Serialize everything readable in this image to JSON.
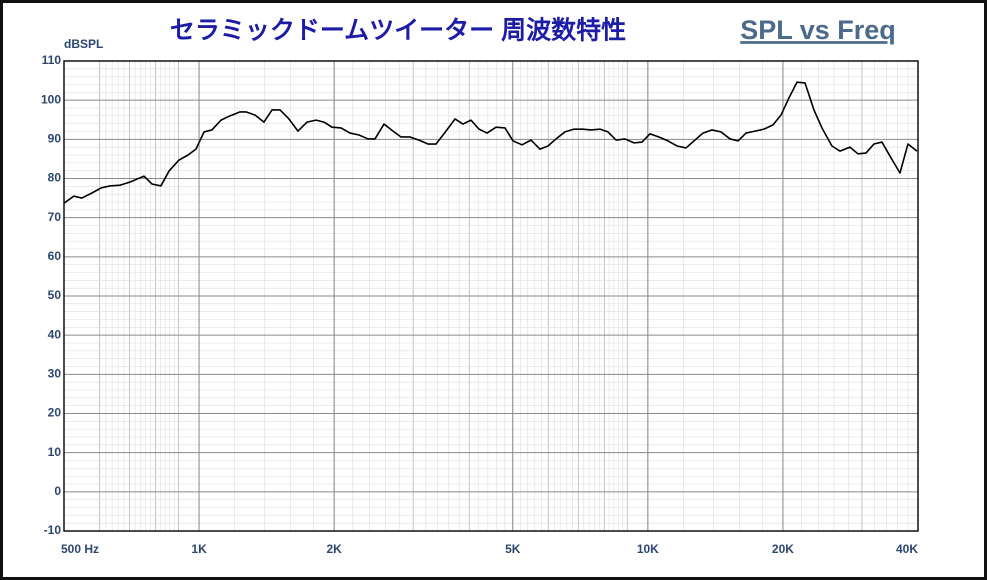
{
  "chart_data": {
    "type": "line",
    "title": "セラミックドームツイーター 周波数特性",
    "subtitle": "SPL vs Freq",
    "y_label": "dBSPL",
    "log_x": true,
    "grid": true,
    "minor_grid": true,
    "xlim": [
      500,
      40000
    ],
    "xticks": [
      {
        "value": 500,
        "label": "500 Hz"
      },
      {
        "value": 1000,
        "label": "1K"
      },
      {
        "value": 2000,
        "label": "2K"
      },
      {
        "value": 5000,
        "label": "5K"
      },
      {
        "value": 10000,
        "label": "10K"
      },
      {
        "value": 20000,
        "label": "20K"
      },
      {
        "value": 40000,
        "label": "40K"
      }
    ],
    "ylim": [
      -10,
      110
    ],
    "yticks": [
      -10,
      0,
      10,
      20,
      30,
      40,
      50,
      60,
      70,
      80,
      90,
      100,
      110
    ],
    "series": [
      {
        "color": "#000000",
        "x": [
          500,
          526,
          548,
          577,
          605,
          633,
          667,
          702,
          754,
          785,
          822,
          857,
          902,
          945,
          984,
          1026,
          1068,
          1119,
          1172,
          1234,
          1272,
          1332,
          1395,
          1454,
          1515,
          1586,
          1661,
          1740,
          1822,
          1898,
          1978,
          2071,
          2169,
          2272,
          2379,
          2466,
          2583,
          2705,
          2818,
          2951,
          3091,
          3237,
          3373,
          3550,
          3718,
          3873,
          4036,
          4205,
          4382,
          4589,
          4805,
          5007,
          5243,
          5491,
          5750,
          5991,
          6242,
          6537,
          6846,
          7169,
          7470,
          7822,
          8151,
          8493,
          8895,
          9315,
          9705,
          10112,
          10590,
          11089,
          11614,
          12162,
          12674,
          13272,
          13900,
          14557,
          15245,
          15887,
          16552,
          17335,
          18152,
          19010,
          19807,
          20637,
          21500,
          22400,
          23455,
          24440,
          25720,
          26800,
          28210,
          29395,
          30625,
          31910,
          33245,
          34815,
          36465,
          37990,
          39790
        ],
        "values": [
          73.7,
          75.5,
          75,
          76.3,
          77.6,
          78.1,
          78.3,
          79.1,
          80.6,
          78.6,
          78.1,
          81.9,
          84.7,
          86,
          87.5,
          91.9,
          92.4,
          94.9,
          96,
          97,
          97,
          96.2,
          94.4,
          97.5,
          97.5,
          95.2,
          92.1,
          94.4,
          94.9,
          94.4,
          93.1,
          92.9,
          91.6,
          91.1,
          90.1,
          90.1,
          93.9,
          92.1,
          90.6,
          90.6,
          89.8,
          88.8,
          88.8,
          92.1,
          95.2,
          93.9,
          94.9,
          92.6,
          91.6,
          93.1,
          92.9,
          89.6,
          88.6,
          89.8,
          87.5,
          88.3,
          90.1,
          91.9,
          92.6,
          92.6,
          92.4,
          92.6,
          91.9,
          89.8,
          90.1,
          89.1,
          89.3,
          91.4,
          90.6,
          89.6,
          88.3,
          87.8,
          89.6,
          91.6,
          92.4,
          91.9,
          90.1,
          89.6,
          91.6,
          92.1,
          92.6,
          93.7,
          96.2,
          100.6,
          104.6,
          104.4,
          97.5,
          92.9,
          88.3,
          87,
          88,
          86.3,
          86.5,
          88.8,
          89.3,
          85.3,
          81.4,
          88.8,
          87
        ]
      }
    ]
  }
}
